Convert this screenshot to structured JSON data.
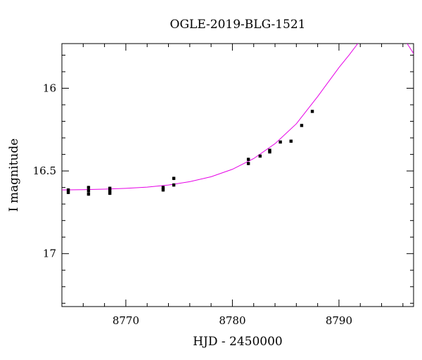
{
  "chart_data": {
    "type": "scatter",
    "title": "OGLE-2019-BLG-1521",
    "xlabel": "HJD - 2450000",
    "ylabel": "I magnitude",
    "xlim": [
      8764,
      8797
    ],
    "ylim": [
      17.32,
      15.73
    ],
    "y_inverted": true,
    "x_major_ticks": [
      8770,
      8780,
      8790
    ],
    "x_tick_labels": [
      "8770",
      "8780",
      "8790"
    ],
    "y_major_ticks": [
      16.0,
      16.5,
      17.0
    ],
    "y_tick_labels": [
      "16",
      "16.5",
      "17"
    ],
    "x_minor_step": 2,
    "y_minor_step": 0.1,
    "grid": false,
    "points_color": "#000000",
    "model_color": "#e600e6",
    "points": [
      {
        "x": 8764.6,
        "y": 16.615,
        "err": 0.01
      },
      {
        "x": 8764.6,
        "y": 16.63,
        "err": 0.01
      },
      {
        "x": 8766.5,
        "y": 16.6,
        "err": 0.01
      },
      {
        "x": 8766.5,
        "y": 16.62,
        "err": 0.01
      },
      {
        "x": 8766.5,
        "y": 16.64,
        "err": 0.01
      },
      {
        "x": 8768.5,
        "y": 16.605,
        "err": 0.01
      },
      {
        "x": 8768.5,
        "y": 16.62,
        "err": 0.01
      },
      {
        "x": 8768.5,
        "y": 16.635,
        "err": 0.01
      },
      {
        "x": 8773.5,
        "y": 16.6,
        "err": 0.01
      },
      {
        "x": 8773.5,
        "y": 16.615,
        "err": 0.01
      },
      {
        "x": 8774.5,
        "y": 16.545,
        "err": 0.01
      },
      {
        "x": 8774.5,
        "y": 16.585,
        "err": 0.01
      },
      {
        "x": 8781.5,
        "y": 16.43,
        "err": 0.01
      },
      {
        "x": 8781.5,
        "y": 16.455,
        "err": 0.01
      },
      {
        "x": 8782.6,
        "y": 16.41,
        "err": 0.008
      },
      {
        "x": 8783.5,
        "y": 16.375,
        "err": 0.008
      },
      {
        "x": 8783.5,
        "y": 16.385,
        "err": 0.008
      },
      {
        "x": 8784.5,
        "y": 16.325,
        "err": 0.008
      },
      {
        "x": 8785.5,
        "y": 16.32,
        "err": 0.008
      },
      {
        "x": 8786.5,
        "y": 16.225,
        "err": 0.008
      },
      {
        "x": 8787.5,
        "y": 16.14,
        "err": 0.008
      }
    ],
    "model_curve": {
      "x": [
        8764,
        8766,
        8768,
        8770,
        8772,
        8774,
        8776,
        8778,
        8780,
        8782,
        8784,
        8786,
        8788,
        8790,
        8791,
        8792
      ],
      "y": [
        16.615,
        16.613,
        16.61,
        16.605,
        16.598,
        16.585,
        16.565,
        16.535,
        16.49,
        16.425,
        16.335,
        16.215,
        16.05,
        15.875,
        15.795,
        15.71
      ]
    },
    "model_curve_2": {
      "x": [
        8796.4,
        8796.8,
        8797.0
      ],
      "y": [
        15.73,
        15.77,
        15.79
      ]
    }
  }
}
